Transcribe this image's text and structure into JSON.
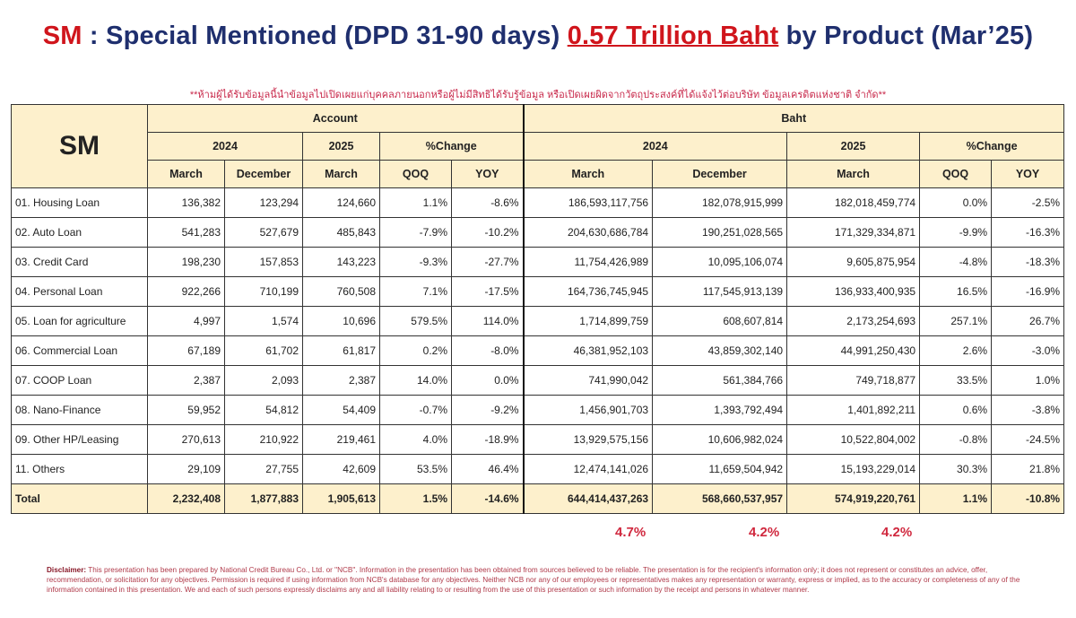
{
  "title": {
    "prefix": "SM",
    "middle": " : Special Mentioned (DPD 31-90 days) ",
    "highlight": "0.57 Trillion Baht",
    "suffix": " by Product (Mar’25)"
  },
  "note": "**ห้ามผู้ได้รับข้อมูลนี้นำข้อมูลไปเปิดเผยแก่บุคคลภายนอกหรือผู้ไม่มีสิทธิได้รับรู้ข้อมูล หรือเปิดเผยผิดจากวัตถุประสงค์ที่ได้แจ้งไว้ต่อบริษัท ข้อมูลเครดิตแห่งชาติ จำกัด**",
  "table": {
    "corner": "SM",
    "groups": [
      "Account",
      "Baht"
    ],
    "years": [
      "2024",
      "2025",
      "%Change",
      "2024",
      "2025",
      "%Change"
    ],
    "columns": [
      "March",
      "December",
      "March",
      "QOQ",
      "YOY",
      "March",
      "December",
      "March",
      "QOQ",
      "YOY"
    ],
    "rows": [
      [
        "01. Housing Loan",
        "136,382",
        "123,294",
        "124,660",
        "1.1%",
        "-8.6%",
        "186,593,117,756",
        "182,078,915,999",
        "182,018,459,774",
        "0.0%",
        "-2.5%"
      ],
      [
        "02. Auto Loan",
        "541,283",
        "527,679",
        "485,843",
        "-7.9%",
        "-10.2%",
        "204,630,686,784",
        "190,251,028,565",
        "171,329,334,871",
        "-9.9%",
        "-16.3%"
      ],
      [
        "03. Credit Card",
        "198,230",
        "157,853",
        "143,223",
        "-9.3%",
        "-27.7%",
        "11,754,426,989",
        "10,095,106,074",
        "9,605,875,954",
        "-4.8%",
        "-18.3%"
      ],
      [
        "04. Personal Loan",
        "922,266",
        "710,199",
        "760,508",
        "7.1%",
        "-17.5%",
        "164,736,745,945",
        "117,545,913,139",
        "136,933,400,935",
        "16.5%",
        "-16.9%"
      ],
      [
        "05. Loan for agriculture",
        "4,997",
        "1,574",
        "10,696",
        "579.5%",
        "114.0%",
        "1,714,899,759",
        "608,607,814",
        "2,173,254,693",
        "257.1%",
        "26.7%"
      ],
      [
        "06. Commercial Loan",
        "67,189",
        "61,702",
        "61,817",
        "0.2%",
        "-8.0%",
        "46,381,952,103",
        "43,859,302,140",
        "44,991,250,430",
        "2.6%",
        "-3.0%"
      ],
      [
        "07. COOP Loan",
        "2,387",
        "2,093",
        "2,387",
        "14.0%",
        "0.0%",
        "741,990,042",
        "561,384,766",
        "749,718,877",
        "33.5%",
        "1.0%"
      ],
      [
        "08. Nano-Finance",
        "59,952",
        "54,812",
        "54,409",
        "-0.7%",
        "-9.2%",
        "1,456,901,703",
        "1,393,792,494",
        "1,401,892,211",
        "0.6%",
        "-3.8%"
      ],
      [
        "09. Other HP/Leasing",
        "270,613",
        "210,922",
        "219,461",
        "4.0%",
        "-18.9%",
        "13,929,575,156",
        "10,606,982,024",
        "10,522,804,002",
        "-0.8%",
        "-24.5%"
      ],
      [
        "11. Others",
        "29,109",
        "27,755",
        "42,609",
        "53.5%",
        "46.4%",
        "12,474,141,026",
        "11,659,504,942",
        "15,193,229,014",
        "30.3%",
        "21.8%"
      ]
    ],
    "total": [
      "Total",
      "2,232,408",
      "1,877,883",
      "1,905,613",
      "1.5%",
      "-14.6%",
      "644,414,437,263",
      "568,660,537,957",
      "574,919,220,761",
      "1.1%",
      "-10.8%"
    ]
  },
  "ratios": [
    "4.7%",
    "4.2%",
    "4.2%"
  ],
  "disclaimer": {
    "label": "Disclaimer:",
    "text": " This presentation has been prepared by National Credit Bureau Co., Ltd. or \"NCB\". Information in the presentation has been obtained from sources believed to be reliable. The presentation is for the recipient's information only; it does not represent or constitutes an advice, offer, recommendation, or solicitation for any objectives. Permission is required if using information from NCB's database for any objectives. Neither NCB nor any of our employees or representatives makes any representation or warranty, express or implied, as to the accuracy or completeness of any of the information contained in this presentation. We and each of such persons expressly disclaims any and all liability relating to or resulting from the use of this presentation or such information by the receipt and persons in whatever manner."
  },
  "colors": {
    "title": "#1f2f6e",
    "accent": "#d0151c",
    "header_fill": "#fdf0cc"
  }
}
